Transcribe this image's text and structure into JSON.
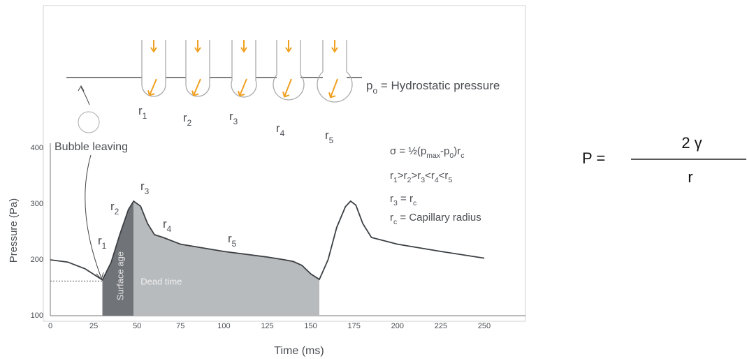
{
  "chart_data": {
    "type": "line",
    "xlabel": "Time (ms)",
    "ylabel": "Pressure (Pa)",
    "x": [
      0,
      10,
      20,
      30,
      35,
      40,
      45,
      48,
      52,
      56,
      60,
      65,
      75,
      100,
      125,
      135,
      140,
      145,
      150,
      155,
      160,
      165,
      170,
      173,
      176,
      180,
      185,
      200,
      225,
      250
    ],
    "values": [
      200,
      196,
      184,
      164,
      195,
      245,
      290,
      305,
      296,
      265,
      245,
      240,
      228,
      215,
      205,
      200,
      197,
      190,
      175,
      165,
      200,
      258,
      295,
      305,
      298,
      265,
      240,
      228,
      215,
      203
    ],
    "color": "#3c4043",
    "xlim": [
      0,
      275
    ],
    "ylim": [
      100,
      400
    ],
    "xticks": [
      0,
      25,
      50,
      75,
      100,
      125,
      150,
      175,
      200,
      225,
      250
    ],
    "yticks": [
      100,
      200,
      300,
      400
    ],
    "reference_line": {
      "y": 162,
      "x": [
        0,
        30
      ]
    },
    "regions": [
      {
        "label": "Surface age",
        "x": [
          30,
          48
        ],
        "color": "#707378"
      },
      {
        "label": "Dead time",
        "x": [
          48,
          155
        ],
        "color": "#b8bbbe"
      }
    ],
    "curve_labels": [
      [
        {
          "text": "r"
        },
        {
          "sub": "1"
        }
      ],
      [
        {
          "text": "r"
        },
        {
          "sub": "2"
        }
      ],
      [
        {
          "text": "r"
        },
        {
          "sub": "3"
        }
      ],
      [
        {
          "text": "r"
        },
        {
          "sub": "4"
        }
      ],
      [
        {
          "text": "r"
        },
        {
          "sub": "5"
        }
      ]
    ],
    "bubble_label": "Bubble leaving",
    "capillary_labels": [
      [
        {
          "text": "r"
        },
        {
          "sub": "1"
        }
      ],
      [
        {
          "text": "r"
        },
        {
          "sub": "2"
        }
      ],
      [
        {
          "text": "r"
        },
        {
          "sub": "3"
        }
      ],
      [
        {
          "text": "r"
        },
        {
          "sub": "4"
        }
      ],
      [
        {
          "text": "r"
        },
        {
          "sub": "5"
        }
      ]
    ],
    "hydrostatic_label": [
      {
        "text": "p"
      },
      {
        "sub": "o"
      },
      {
        "text": " = Hydrostatic pressure"
      }
    ],
    "formula_lines": [
      [
        {
          "text": "σ = ½(p"
        },
        {
          "sub": "max"
        },
        {
          "text": "-p"
        },
        {
          "sub": "0"
        },
        {
          "text": ")r"
        },
        {
          "sub": "c"
        }
      ],
      [
        {
          "text": "r"
        },
        {
          "sub": "1"
        },
        {
          "text": ">r"
        },
        {
          "sub": "2"
        },
        {
          "text": ">r"
        },
        {
          "sub": "3"
        },
        {
          "text": "<r"
        },
        {
          "sub": "4"
        },
        {
          "text": "<r"
        },
        {
          "sub": "5"
        }
      ],
      [
        {
          "text": "r"
        },
        {
          "sub": "3"
        },
        {
          "text": " = r"
        },
        {
          "sub": "c"
        }
      ],
      [
        {
          "text": "r"
        },
        {
          "sub": "c"
        },
        {
          "text": " = Capillary radius"
        }
      ]
    ],
    "laplace": {
      "lhs": "P =",
      "numerator": "2 γ",
      "denominator": "r"
    }
  }
}
